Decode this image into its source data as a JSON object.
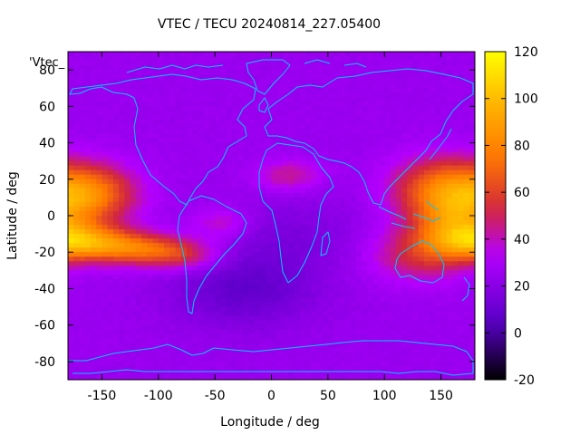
{
  "chart_data": {
    "type": "heatmap",
    "title": "VTEC / TECU 20240814_227.05400",
    "xlabel": "Longitude / deg",
    "ylabel": "Latitude / deg",
    "key_label": "'Vtec_",
    "xlim": [
      -180,
      180
    ],
    "ylim": [
      -90,
      90
    ],
    "x_ticks": [
      -150,
      -100,
      -50,
      0,
      50,
      100,
      150
    ],
    "y_ticks": [
      -80,
      -60,
      -40,
      -20,
      0,
      20,
      40,
      60,
      80
    ],
    "colorbar": {
      "range": [
        -20,
        120
      ],
      "ticks": [
        -20,
        0,
        20,
        40,
        60,
        80,
        100,
        120
      ],
      "palette": [
        "#000000",
        "#5a00c8",
        "#b400ff",
        "#d2283c",
        "#ff7800",
        "#ffb400",
        "#ffff00"
      ],
      "palette_stops": [
        0,
        0.18,
        0.38,
        0.52,
        0.68,
        0.84,
        1
      ]
    },
    "coastline_color": "#00c8ff",
    "grid": false,
    "field_description": {
      "lon_step": 5,
      "lat_step": 2.5,
      "background_value": 25,
      "features": [
        {
          "lon": -160,
          "lat": 12,
          "amp": 50,
          "slon": 28,
          "slat": 11
        },
        {
          "lon": -170,
          "lat": -14,
          "amp": 55,
          "slon": 30,
          "slat": 7
        },
        {
          "lon": -120,
          "lat": -18,
          "amp": 40,
          "slon": 30,
          "slat": 6
        },
        {
          "lon": -80,
          "lat": -22,
          "amp": 25,
          "slon": 25,
          "slat": 6
        },
        {
          "lon": -45,
          "lat": -4,
          "amp": 15,
          "slon": 18,
          "slat": 6
        },
        {
          "lon": 15,
          "lat": 22,
          "amp": 20,
          "slon": 20,
          "slat": 6
        },
        {
          "lon": 150,
          "lat": 15,
          "amp": 45,
          "slon": 30,
          "slat": 12
        },
        {
          "lon": 160,
          "lat": -5,
          "amp": 40,
          "slon": 25,
          "slat": 12
        },
        {
          "lon": 130,
          "lat": -22,
          "amp": 25,
          "slon": 30,
          "slat": 10
        },
        {
          "lon": -25,
          "lat": -40,
          "amp": -17,
          "slon": 45,
          "slat": 15
        },
        {
          "lon": 20,
          "lat": -10,
          "amp": -8,
          "slon": 40,
          "slat": 15
        }
      ]
    }
  }
}
